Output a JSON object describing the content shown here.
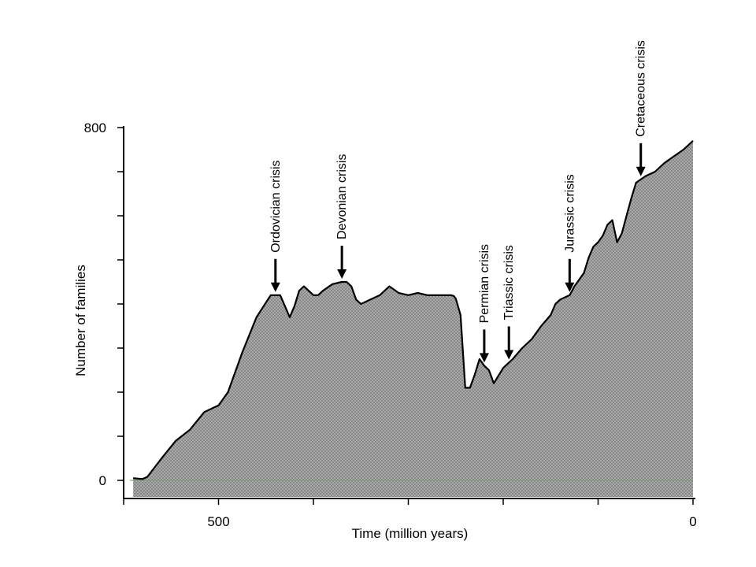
{
  "chart_data": {
    "type": "area",
    "xlabel": "Time (million years)",
    "ylabel": "Number of families",
    "xlim": [
      600,
      0
    ],
    "ylim": [
      0,
      800
    ],
    "x_ticks": [
      {
        "value": 500,
        "label": "500"
      },
      {
        "value": 0,
        "label": "0"
      }
    ],
    "y_ticks": [
      {
        "value": 0,
        "label": "0"
      },
      {
        "value": 800,
        "label": "800"
      }
    ],
    "fill_color": "#9a9a9a",
    "line_color": "#000000",
    "series": [
      {
        "x": [
          590,
          580,
          575,
          560,
          545,
          530,
          515,
          500,
          490,
          475,
          460,
          445,
          435,
          425,
          420,
          415,
          410,
          405,
          400,
          395,
          390,
          380,
          370,
          365,
          360,
          355,
          350,
          345,
          340,
          330,
          320,
          310,
          300,
          290,
          280,
          270,
          260,
          255,
          252,
          250,
          245,
          240,
          235,
          230,
          225,
          220,
          215,
          210,
          200,
          190,
          180,
          170,
          160,
          150,
          145,
          140,
          130,
          125,
          120,
          115,
          110,
          105,
          100,
          95,
          90,
          85,
          80,
          75,
          70,
          65,
          60,
          50,
          40,
          30,
          20,
          10,
          0
        ],
        "y": [
          5,
          3,
          8,
          50,
          90,
          115,
          155,
          170,
          200,
          290,
          370,
          420,
          420,
          370,
          395,
          430,
          440,
          430,
          420,
          420,
          430,
          445,
          450,
          450,
          440,
          410,
          400,
          405,
          410,
          420,
          440,
          425,
          420,
          425,
          420,
          420,
          420,
          420,
          418,
          412,
          375,
          210,
          210,
          240,
          275,
          260,
          250,
          220,
          255,
          275,
          300,
          320,
          350,
          375,
          400,
          410,
          420,
          440,
          455,
          470,
          505,
          530,
          540,
          555,
          580,
          590,
          540,
          560,
          600,
          640,
          675,
          690,
          700,
          720,
          735,
          750,
          770
        ]
      }
    ],
    "annotations": [
      {
        "label": "Ordovician crisis",
        "x": 440
      },
      {
        "label": "Devonian crisis",
        "x": 370
      },
      {
        "label": "Permian crisis",
        "x": 220
      },
      {
        "label": "Triassic crisis",
        "x": 194
      },
      {
        "label": "Jurassic crisis",
        "x": 130
      },
      {
        "label": "Cretaceous crisis",
        "x": 55
      }
    ]
  }
}
